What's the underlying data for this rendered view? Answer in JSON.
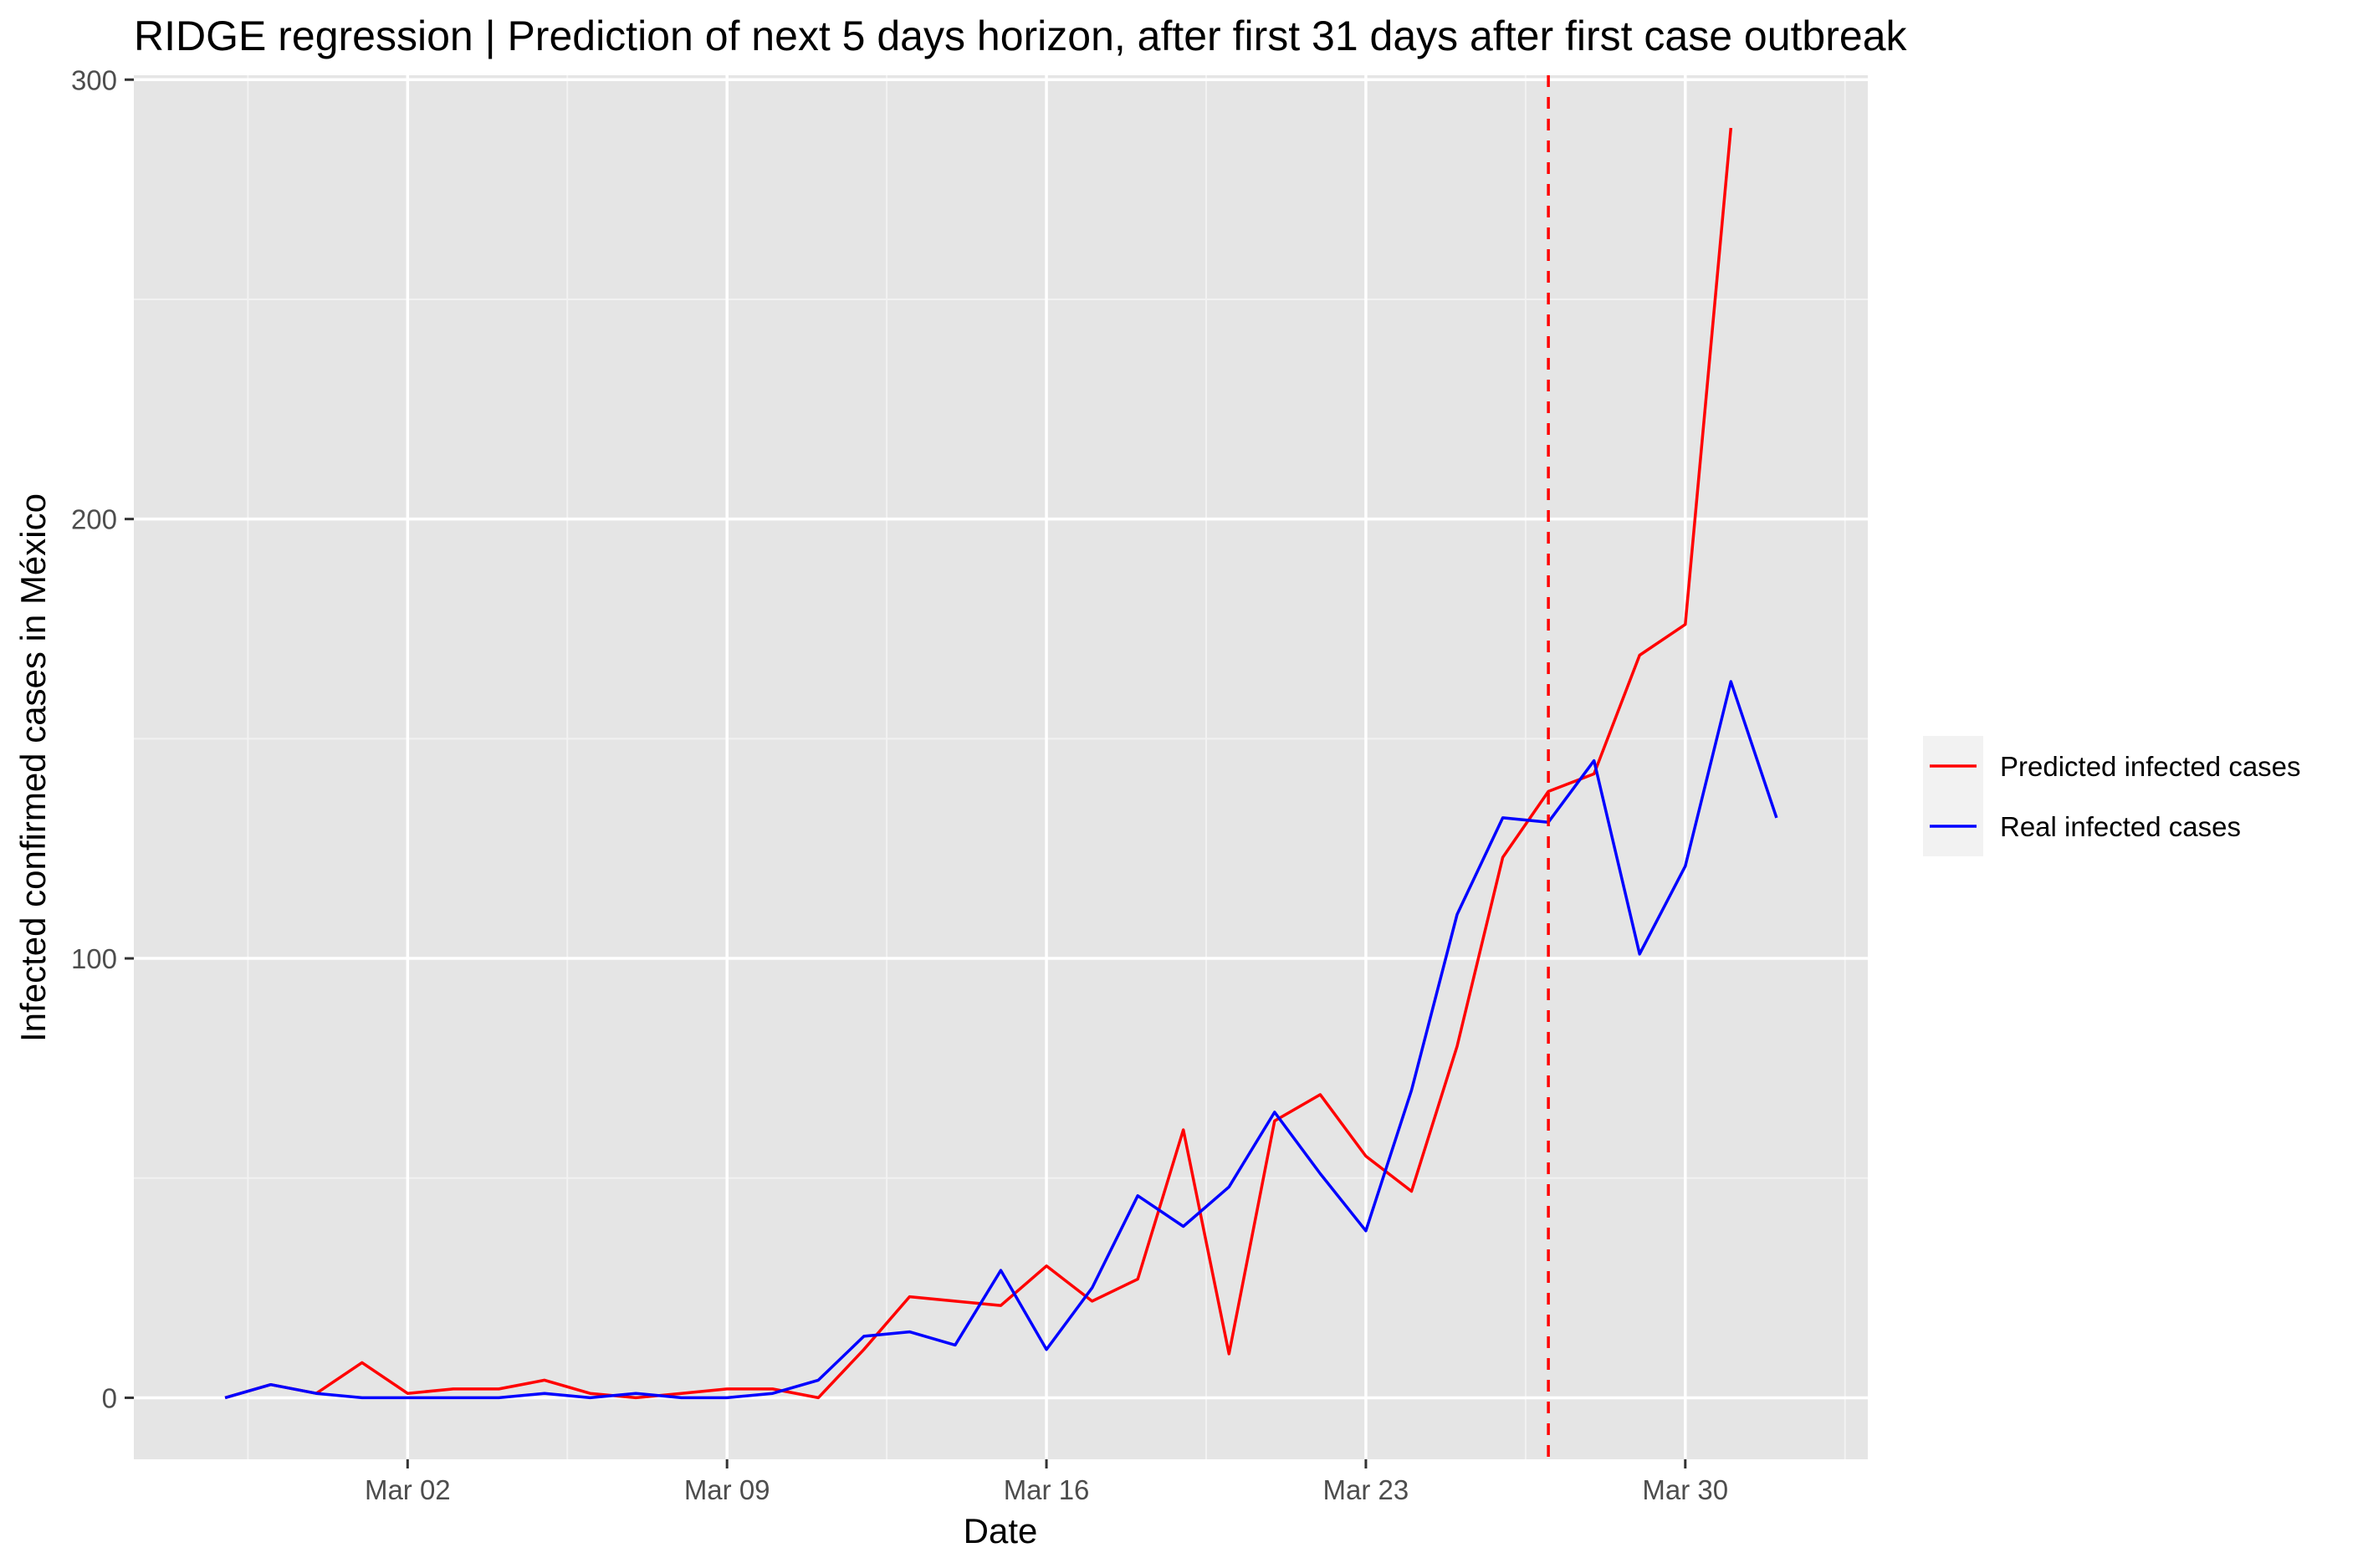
{
  "chart_data": {
    "type": "line",
    "title": "RIDGE regression | Prediction of next 5 days horizon, after first 31 days after first case outbreak",
    "xlabel": "Date",
    "ylabel": "Infected confirmed cases in México",
    "x_axis_type": "date",
    "x_range": [
      "2020-02-25",
      "2020-04-03"
    ],
    "ylim": [
      -14,
      301
    ],
    "x_ticks": [
      {
        "date": "2020-03-02",
        "label": "Mar 02"
      },
      {
        "date": "2020-03-09",
        "label": "Mar 09"
      },
      {
        "date": "2020-03-16",
        "label": "Mar 16"
      },
      {
        "date": "2020-03-23",
        "label": "Mar 23"
      },
      {
        "date": "2020-03-30",
        "label": "Mar 30"
      }
    ],
    "y_ticks": [
      0,
      100,
      200,
      300
    ],
    "grid": true,
    "legend_position": "right",
    "vline": {
      "date": "2020-03-27",
      "color": "#ff0000",
      "style": "dashed"
    },
    "series": [
      {
        "name": "Predicted infected cases",
        "color": "#ff0000",
        "x": [
          "2020-02-27",
          "2020-02-28",
          "2020-02-29",
          "2020-03-01",
          "2020-03-02",
          "2020-03-03",
          "2020-03-04",
          "2020-03-05",
          "2020-03-06",
          "2020-03-07",
          "2020-03-08",
          "2020-03-09",
          "2020-03-10",
          "2020-03-11",
          "2020-03-12",
          "2020-03-13",
          "2020-03-14",
          "2020-03-15",
          "2020-03-16",
          "2020-03-17",
          "2020-03-18",
          "2020-03-19",
          "2020-03-20",
          "2020-03-21",
          "2020-03-22",
          "2020-03-23",
          "2020-03-24",
          "2020-03-25",
          "2020-03-26",
          "2020-03-27",
          "2020-03-28",
          "2020-03-29",
          "2020-03-30",
          "2020-03-31"
        ],
        "values": [
          0,
          3,
          1,
          8,
          1,
          2,
          2,
          4,
          1,
          0,
          1,
          2,
          2,
          0,
          11,
          23,
          22,
          21,
          30,
          22,
          27,
          61,
          10,
          63,
          69,
          55,
          47,
          80,
          123,
          138,
          142,
          169,
          176,
          289
        ]
      },
      {
        "name": "Real infected cases",
        "color": "#0000ff",
        "x": [
          "2020-02-27",
          "2020-02-28",
          "2020-02-29",
          "2020-03-01",
          "2020-03-02",
          "2020-03-03",
          "2020-03-04",
          "2020-03-05",
          "2020-03-06",
          "2020-03-07",
          "2020-03-08",
          "2020-03-09",
          "2020-03-10",
          "2020-03-11",
          "2020-03-12",
          "2020-03-13",
          "2020-03-14",
          "2020-03-15",
          "2020-03-16",
          "2020-03-17",
          "2020-03-18",
          "2020-03-19",
          "2020-03-20",
          "2020-03-21",
          "2020-03-22",
          "2020-03-23",
          "2020-03-24",
          "2020-03-25",
          "2020-03-26",
          "2020-03-27",
          "2020-03-28",
          "2020-03-29",
          "2020-03-30",
          "2020-03-31",
          "2020-04-01"
        ],
        "values": [
          0,
          3,
          1,
          0,
          0,
          0,
          0,
          1,
          0,
          1,
          0,
          0,
          1,
          4,
          14,
          15,
          12,
          29,
          11,
          25,
          46,
          39,
          48,
          65,
          51,
          38,
          70,
          110,
          132,
          131,
          145,
          101,
          121,
          163,
          132
        ]
      }
    ]
  },
  "colors": {
    "panel_background": "#e5e5e5",
    "grid_major": "#ffffff",
    "grid_minor": "#f2f2f2",
    "legend_key_background": "#f2f2f2"
  }
}
